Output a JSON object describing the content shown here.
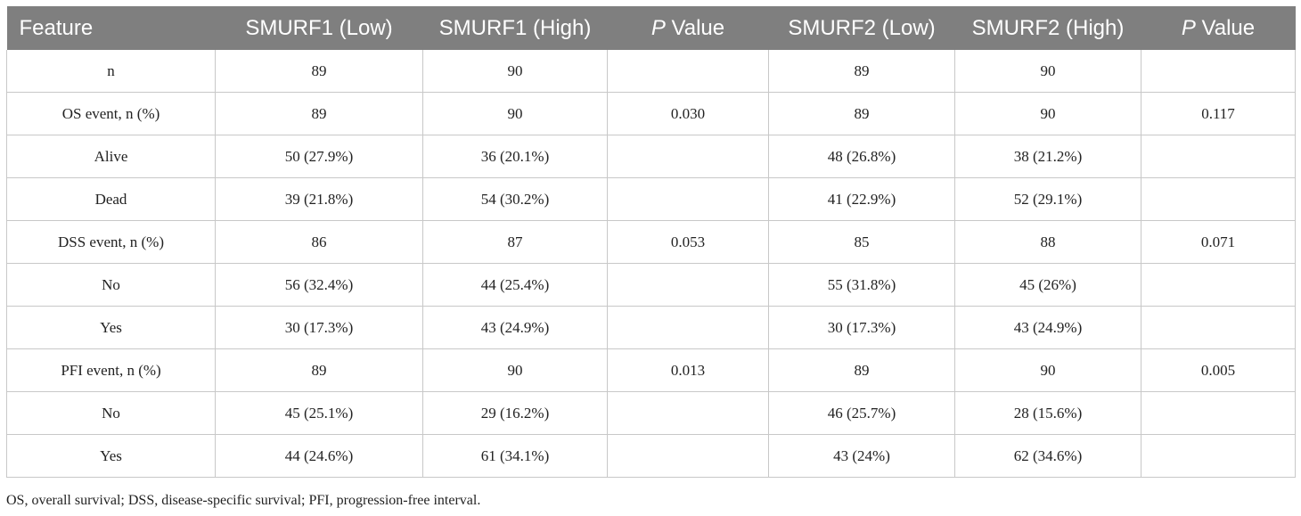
{
  "table": {
    "headers": [
      {
        "pre": "",
        "em": "",
        "post": "Feature"
      },
      {
        "pre": "",
        "em": "",
        "post": "SMURF1 (Low)"
      },
      {
        "pre": "",
        "em": "",
        "post": "SMURF1 (High)"
      },
      {
        "pre": "",
        "em": "P",
        "post": " Value"
      },
      {
        "pre": "",
        "em": "",
        "post": "SMURF2 (Low)"
      },
      {
        "pre": "",
        "em": "",
        "post": "SMURF2 (High)"
      },
      {
        "pre": "",
        "em": "P",
        "post": " Value"
      }
    ],
    "rows": [
      [
        "n",
        "89",
        "90",
        "",
        "89",
        "90",
        ""
      ],
      [
        "OS event, n (%)",
        "89",
        "90",
        "0.030",
        "89",
        "90",
        "0.117"
      ],
      [
        "Alive",
        "50 (27.9%)",
        "36 (20.1%)",
        "",
        "48 (26.8%)",
        "38 (21.2%)",
        ""
      ],
      [
        "Dead",
        "39 (21.8%)",
        "54 (30.2%)",
        "",
        "41 (22.9%)",
        "52 (29.1%)",
        ""
      ],
      [
        "DSS event, n (%)",
        "86",
        "87",
        "0.053",
        "85",
        "88",
        "0.071"
      ],
      [
        "No",
        "56 (32.4%)",
        "44 (25.4%)",
        "",
        "55 (31.8%)",
        "45 (26%)",
        ""
      ],
      [
        "Yes",
        "30 (17.3%)",
        "43 (24.9%)",
        "",
        "30 (17.3%)",
        "43 (24.9%)",
        ""
      ],
      [
        "PFI event, n (%)",
        "89",
        "90",
        "0.013",
        "89",
        "90",
        "0.005"
      ],
      [
        "No",
        "45 (25.1%)",
        "29 (16.2%)",
        "",
        "46 (25.7%)",
        "28 (15.6%)",
        ""
      ],
      [
        "Yes",
        "44 (24.6%)",
        "61 (34.1%)",
        "",
        "43 (24%)",
        "62 (34.6%)",
        ""
      ]
    ]
  },
  "footnote": "OS, overall survival; DSS, disease-specific survival; PFI, progression-free interval.",
  "colors": {
    "header_bg": "#7f7f7f",
    "header_text": "#ffffff",
    "grid": "#c8c8c8"
  }
}
